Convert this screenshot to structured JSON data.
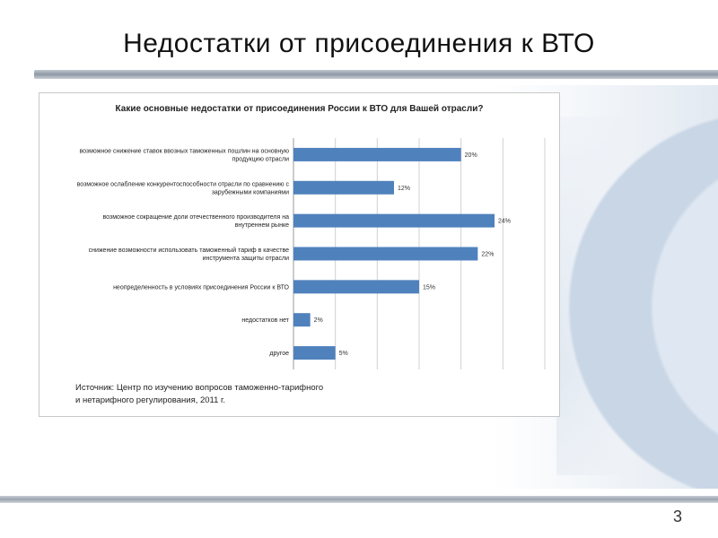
{
  "slide": {
    "title": "Недостатки от присоединения к ВТО",
    "page_number": "3"
  },
  "chart_data": {
    "type": "bar",
    "orientation": "horizontal",
    "title": "Какие основные недостатки от присоединения России к ВТО для Вашей отрасли?",
    "categories": [
      [
        "возможное снижение ставок ввозных таможенных пошлин на основную",
        "продукцию отрасли"
      ],
      [
        "возможное ослабление конкурентоспособности отрасли по сравнению с",
        "зарубежными компаниями"
      ],
      [
        "возможное сокращение доли отечественного производителя на",
        "внутреннем рынке"
      ],
      [
        "снижение возможности использовать таможенный тариф в качестве",
        "инструмента защиты отрасли"
      ],
      [
        "неопределенность в условиях присоединения России к ВТО"
      ],
      [
        "недостатков нет"
      ],
      [
        "другое"
      ]
    ],
    "values": [
      20,
      12,
      24,
      22,
      15,
      2,
      5
    ],
    "data_labels": [
      "20%",
      "12%",
      "24%",
      "22%",
      "15%",
      "2%",
      "5%"
    ],
    "xlim": [
      0,
      30
    ],
    "grid": true,
    "bar_color": "#4f81bd",
    "source": [
      "Источник: Центр по изучению вопросов таможенно-тарифного",
      "и нетарифного регулирования, 2011 г."
    ]
  }
}
